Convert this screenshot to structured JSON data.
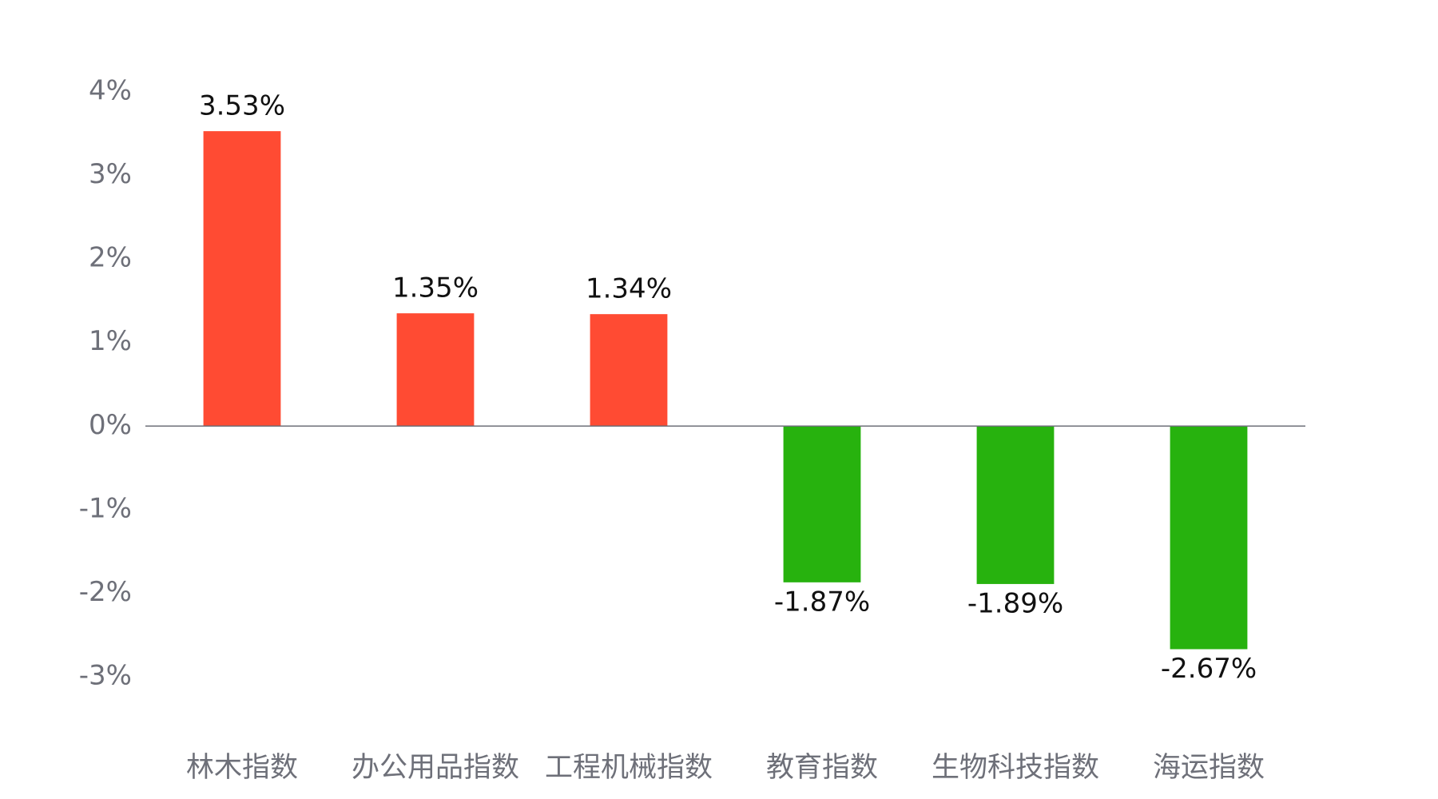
{
  "chart_data": {
    "type": "bar",
    "categories": [
      "林木指数",
      "办公用品指数",
      "工程机械指数",
      "教育指数",
      "生物科技指数",
      "海运指数"
    ],
    "values": [
      3.53,
      1.35,
      1.34,
      -1.87,
      -1.89,
      -2.67
    ],
    "value_labels": [
      "3.53%",
      "1.35%",
      "1.34%",
      "-1.87%",
      "-1.89%",
      "-2.67%"
    ],
    "colors": [
      "#ff4b33",
      "#ff4b33",
      "#ff4b33",
      "#27b20e",
      "#27b20e",
      "#27b20e"
    ],
    "ylim": [
      -3,
      4
    ],
    "yticks": [
      {
        "value": 4,
        "label": "4%"
      },
      {
        "value": 3,
        "label": "3%"
      },
      {
        "value": 2,
        "label": "2%"
      },
      {
        "value": 1,
        "label": "1%"
      },
      {
        "value": 0,
        "label": "0%"
      },
      {
        "value": -1,
        "label": "-1%"
      },
      {
        "value": -2,
        "label": "-2%"
      },
      {
        "value": -3,
        "label": "-3%"
      }
    ],
    "grid": false
  }
}
